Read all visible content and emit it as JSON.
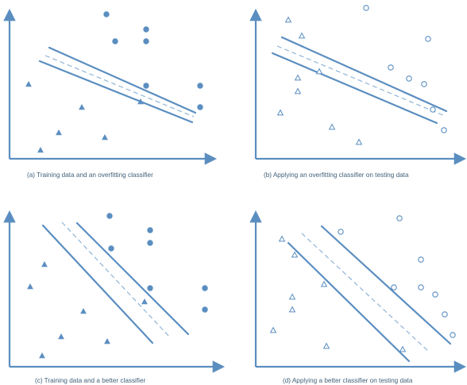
{
  "figure": {
    "accent_color": "#5b8ec0",
    "panels": [
      {
        "id": "a",
        "caption": "(a) Training data and an overfitting classifier",
        "point_style": "filled",
        "circles": [
          [
            134,
            18
          ],
          [
            145,
            52
          ],
          [
            184,
            37
          ],
          [
            184,
            52
          ],
          [
            184,
            108
          ],
          [
            252,
            108
          ],
          [
            252,
            135
          ]
        ],
        "triangles": [
          [
            36,
            106
          ],
          [
            103,
            135
          ],
          [
            74,
            167
          ],
          [
            132,
            173
          ],
          [
            51,
            189
          ],
          [
            177,
            128
          ]
        ],
        "solid_lines": [
          [
            [
              62,
              60
            ],
            [
              246,
              142
            ]
          ],
          [
            [
              50,
              77
            ],
            [
              242,
              154
            ]
          ]
        ],
        "dashed_line": [
          [
            57,
            70
          ],
          [
            244,
            147
          ]
        ]
      },
      {
        "id": "b",
        "caption": "(b) Applying an overfitting classifier on testing data",
        "point_style": "hollow",
        "circles": [
          [
            461,
            10
          ],
          [
            539,
            49
          ],
          [
            492,
            85
          ],
          [
            515,
            99
          ],
          [
            534,
            106
          ],
          [
            545,
            138
          ],
          [
            559,
            164
          ]
        ],
        "triangles": [
          [
            363,
            25
          ],
          [
            380,
            45
          ],
          [
            375,
            98
          ],
          [
            375,
            115
          ],
          [
            402,
            90
          ],
          [
            353,
            142
          ],
          [
            418,
            160
          ],
          [
            452,
            179
          ]
        ],
        "solid_lines": [
          [
            [
              355,
              47
            ],
            [
              562,
              140
            ]
          ],
          [
            [
              343,
              67
            ],
            [
              550,
              155
            ]
          ]
        ],
        "dashed_line": [
          [
            349,
            58
          ],
          [
            560,
            146
          ]
        ]
      },
      {
        "id": "c",
        "caption": "(c) Training data and a better classifier",
        "point_style": "filled",
        "circles": [
          [
            138,
            272
          ],
          [
            189,
            290
          ],
          [
            189,
            306
          ],
          [
            140,
            313
          ],
          [
            189,
            363
          ],
          [
            258,
            363
          ],
          [
            258,
            390
          ]
        ],
        "triangles": [
          [
            56,
            333
          ],
          [
            38,
            361
          ],
          [
            105,
            392
          ],
          [
            77,
            424
          ],
          [
            135,
            430
          ],
          [
            53,
            448
          ],
          [
            182,
            380
          ]
        ],
        "solid_lines": [
          [
            [
              54,
              284
            ],
            [
              192,
              432
            ]
          ],
          [
            [
              97,
              281
            ],
            [
              237,
              421
            ]
          ]
        ],
        "dashed_line": [
          [
            78,
            280
          ],
          [
            215,
            426
          ]
        ]
      },
      {
        "id": "d",
        "caption": "(d) Applying a better classifier on testing data",
        "point_style": "hollow",
        "circles": [
          [
            503,
            275
          ],
          [
            429,
            292
          ],
          [
            530,
            327
          ],
          [
            496,
            362
          ],
          [
            530,
            362
          ],
          [
            548,
            371
          ],
          [
            560,
            396
          ],
          [
            570,
            422
          ]
        ],
        "triangles": [
          [
            355,
            301
          ],
          [
            371,
            321
          ],
          [
            408,
            358
          ],
          [
            368,
            374
          ],
          [
            368,
            390
          ],
          [
            344,
            416
          ],
          [
            411,
            436
          ],
          [
            507,
            440
          ]
        ],
        "solid_lines": [
          [
            [
              363,
              306
            ],
            [
              515,
              455
            ]
          ],
          [
            [
              405,
              285
            ],
            [
              567,
              433
            ]
          ]
        ],
        "dashed_line": [
          [
            380,
            294
          ],
          [
            541,
            444
          ]
        ]
      }
    ]
  }
}
